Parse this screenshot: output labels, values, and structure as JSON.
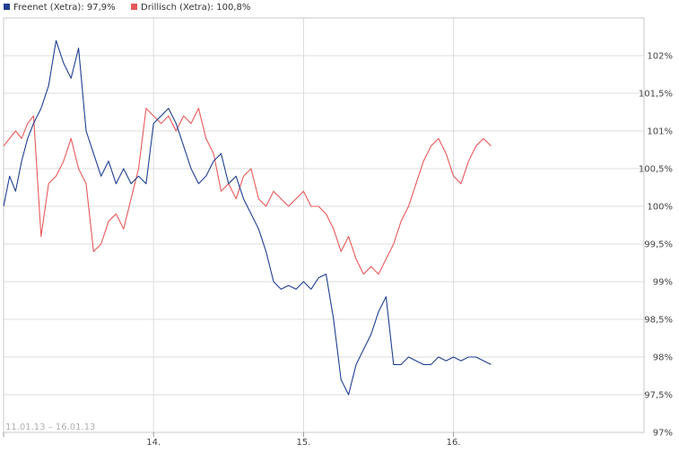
{
  "legend": [
    {
      "label": "Freenet (Xetra): 97,9%",
      "color": "#1f3f8f"
    },
    {
      "label": "Drillisch (Xetra): 100,8%",
      "color": "#e8595a"
    }
  ],
  "date_range": "11.01.13 – 16.01.13",
  "chart_data": {
    "type": "line",
    "title": "",
    "xlabel": "",
    "ylabel": "",
    "ylim": [
      97,
      102.5
    ],
    "y_ticks": [
      97,
      97.5,
      98,
      98.5,
      99,
      99.5,
      100,
      100.5,
      101,
      101.5,
      102
    ],
    "y_tick_labels": [
      "97%",
      "97,5%",
      "98%",
      "98,5%",
      "99%",
      "99,5%",
      "100%",
      "100,5%",
      "101%",
      "101,5%",
      "102%"
    ],
    "x_ticks": [
      3,
      4,
      5,
      6
    ],
    "x_tick_labels": [
      "",
      "14.",
      "15.",
      "16."
    ],
    "xlim": [
      3,
      7.27
    ],
    "grid": true,
    "legend_position": "top-left",
    "series": [
      {
        "name": "Freenet (Xetra): 97,9%",
        "color": "#1f3f8f",
        "x": [
          3.0,
          3.04,
          3.08,
          3.12,
          3.16,
          3.2,
          3.25,
          3.3,
          3.35,
          3.4,
          3.45,
          3.5,
          3.55,
          3.6,
          3.65,
          3.7,
          3.75,
          3.8,
          3.85,
          3.9,
          3.95,
          4.0,
          4.05,
          4.1,
          4.15,
          4.2,
          4.25,
          4.3,
          4.35,
          4.4,
          4.45,
          4.5,
          4.55,
          4.6,
          4.65,
          4.7,
          4.75,
          4.8,
          4.85,
          4.9,
          4.95,
          5.0,
          5.05,
          5.1,
          5.15,
          5.2,
          5.25,
          5.3,
          5.35,
          5.4,
          5.45,
          5.5,
          5.55,
          5.6,
          5.65,
          5.7,
          5.75,
          5.8,
          5.85,
          5.9,
          5.95,
          6.0,
          6.05,
          6.1,
          6.15,
          6.2,
          6.25
        ],
        "y": [
          100.0,
          100.4,
          100.2,
          100.6,
          100.9,
          101.1,
          101.3,
          101.6,
          102.2,
          101.9,
          101.7,
          102.1,
          101.0,
          100.7,
          100.4,
          100.6,
          100.3,
          100.5,
          100.3,
          100.4,
          100.3,
          101.1,
          101.2,
          101.3,
          101.1,
          100.8,
          100.5,
          100.3,
          100.4,
          100.6,
          100.7,
          100.3,
          100.4,
          100.1,
          99.9,
          99.7,
          99.4,
          99.0,
          98.9,
          98.95,
          98.9,
          99.0,
          98.9,
          99.05,
          99.1,
          98.5,
          97.7,
          97.5,
          97.9,
          98.1,
          98.3,
          98.6,
          98.8,
          97.9,
          97.9,
          98.0,
          97.95,
          97.9,
          97.9,
          98.0,
          97.95,
          98.0,
          97.95,
          98.0,
          98.0,
          97.95,
          97.9
        ]
      },
      {
        "name": "Drillisch (Xetra): 100,8%",
        "color": "#e8595a",
        "x": [
          3.0,
          3.04,
          3.08,
          3.12,
          3.16,
          3.2,
          3.25,
          3.3,
          3.35,
          3.4,
          3.45,
          3.5,
          3.55,
          3.6,
          3.65,
          3.7,
          3.75,
          3.8,
          3.85,
          3.9,
          3.95,
          4.0,
          4.05,
          4.1,
          4.15,
          4.2,
          4.25,
          4.3,
          4.35,
          4.4,
          4.45,
          4.5,
          4.55,
          4.6,
          4.65,
          4.7,
          4.75,
          4.8,
          4.85,
          4.9,
          4.95,
          5.0,
          5.05,
          5.1,
          5.15,
          5.2,
          5.25,
          5.3,
          5.35,
          5.4,
          5.45,
          5.5,
          5.55,
          5.6,
          5.65,
          5.7,
          5.75,
          5.8,
          5.85,
          5.9,
          5.95,
          6.0,
          6.05,
          6.1,
          6.15,
          6.2,
          6.25
        ],
        "y": [
          100.8,
          100.9,
          101.0,
          100.9,
          101.1,
          101.2,
          99.6,
          100.3,
          100.4,
          100.6,
          100.9,
          100.5,
          100.3,
          99.4,
          99.5,
          99.8,
          99.9,
          99.7,
          100.1,
          100.5,
          101.3,
          101.2,
          101.1,
          101.2,
          101.0,
          101.2,
          101.1,
          101.3,
          100.9,
          100.7,
          100.2,
          100.3,
          100.1,
          100.4,
          100.5,
          100.1,
          100.0,
          100.2,
          100.1,
          100.0,
          100.1,
          100.2,
          100.0,
          100.0,
          99.9,
          99.7,
          99.4,
          99.6,
          99.3,
          99.1,
          99.2,
          99.1,
          99.3,
          99.5,
          99.8,
          100.0,
          100.3,
          100.6,
          100.8,
          100.9,
          100.7,
          100.4,
          100.3,
          100.6,
          100.8,
          100.9,
          100.8
        ]
      }
    ]
  }
}
